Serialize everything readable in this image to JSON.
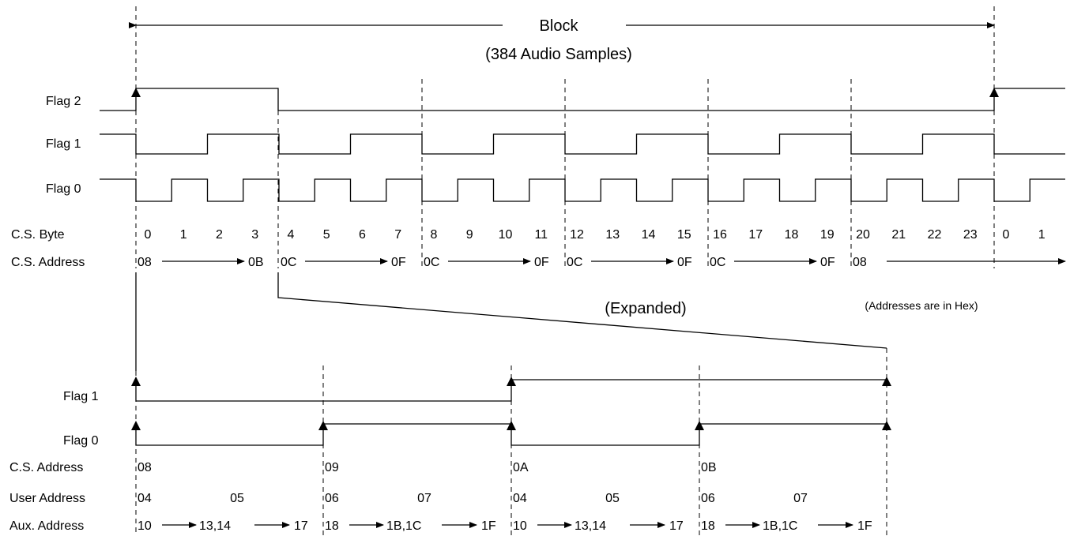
{
  "title": {
    "line1": "Block",
    "line2": "(384 Audio Samples)"
  },
  "top_labels": {
    "flag2": "Flag 2",
    "flag1": "Flag 1",
    "flag0": "Flag 0",
    "cs_byte": "C.S. Byte",
    "cs_address": "C.S. Address"
  },
  "cs_bytes": [
    "0",
    "1",
    "2",
    "3",
    "4",
    "5",
    "6",
    "7",
    "8",
    "9",
    "10",
    "11",
    "12",
    "13",
    "14",
    "15",
    "16",
    "17",
    "18",
    "19",
    "20",
    "21",
    "22",
    "23",
    "0",
    "1"
  ],
  "cs_address_groups": [
    {
      "start": "08",
      "end": "0B"
    },
    {
      "start": "0C",
      "end": "0F"
    },
    {
      "start": "0C",
      "end": "0F"
    },
    {
      "start": "0C",
      "end": "0F"
    },
    {
      "start": "0C",
      "end": "0F"
    },
    {
      "start": "08",
      "end": ""
    }
  ],
  "expanded_label": "(Expanded)",
  "hex_note": "(Addresses are in Hex)",
  "bottom_labels": {
    "flag1": "Flag 1",
    "flag0": "Flag 0",
    "cs_address": "C.S. Address",
    "user_address": "User Address",
    "aux_address": "Aux. Address"
  },
  "bottom_cs_address": [
    "08",
    "09",
    "0A",
    "0B"
  ],
  "bottom_user_address": [
    {
      "start": "04",
      "mid": "05"
    },
    {
      "start": "06",
      "mid": "07"
    },
    {
      "start": "04",
      "mid": "05"
    },
    {
      "start": "06",
      "mid": "07"
    }
  ],
  "bottom_aux_address": [
    {
      "start": "10",
      "mid": "13,14",
      "end": "17"
    },
    {
      "start": "18",
      "mid": "1B,1C",
      "end": "1F"
    },
    {
      "start": "10",
      "mid": "13,14",
      "end": "17"
    },
    {
      "start": "18",
      "mid": "1B,1C",
      "end": "1F"
    }
  ]
}
